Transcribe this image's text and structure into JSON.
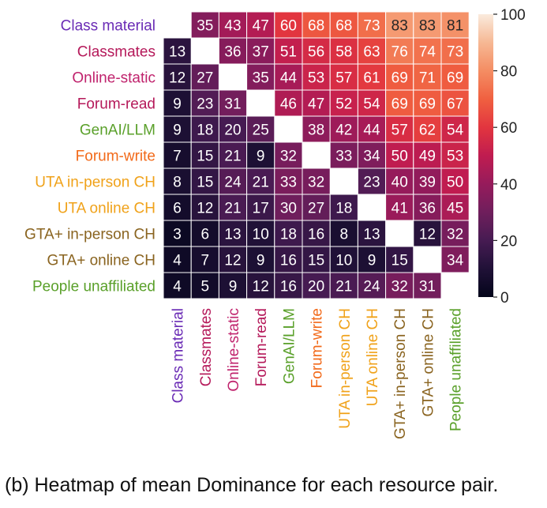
{
  "caption": "(b) Heatmap of mean Dominance for each resource pair.",
  "chart_data": {
    "type": "heatmap",
    "title": "",
    "xlabel": "",
    "ylabel": "",
    "rows": [
      "Class material",
      "Classmates",
      "Online-static",
      "Forum-read",
      "GenAI/LLM",
      "Forum-write",
      "UTA in-person CH",
      "UTA online CH",
      "GTA+ in-person CH",
      "GTA+ online CH",
      "People unaffiliated"
    ],
    "columns": [
      "Class material",
      "Classmates",
      "Online-static",
      "Forum-read",
      "GenAI/LLM",
      "Forum-write",
      "UTA in-person CH",
      "UTA online CH",
      "GTA+ in-person CH",
      "GTA+ online CH",
      "People unaffiliated"
    ],
    "label_colors": [
      "#6a2bb5",
      "#b5195a",
      "#c0236d",
      "#b5195a",
      "#5aa02a",
      "#f26a1a",
      "#f0a21a",
      "#f0a21a",
      "#8a6420",
      "#8a6420",
      "#5aa02a"
    ],
    "values": [
      [
        null,
        35,
        43,
        47,
        60,
        68,
        68,
        73,
        83,
        83,
        81
      ],
      [
        13,
        null,
        36,
        37,
        51,
        56,
        58,
        63,
        76,
        74,
        73
      ],
      [
        12,
        27,
        null,
        35,
        44,
        53,
        57,
        61,
        69,
        71,
        69
      ],
      [
        9,
        23,
        31,
        null,
        46,
        47,
        52,
        54,
        69,
        69,
        67
      ],
      [
        9,
        18,
        20,
        25,
        null,
        38,
        42,
        44,
        57,
        62,
        54
      ],
      [
        7,
        15,
        21,
        9,
        32,
        null,
        33,
        34,
        50,
        49,
        53
      ],
      [
        8,
        15,
        24,
        21,
        33,
        32,
        null,
        23,
        40,
        39,
        50
      ],
      [
        6,
        12,
        21,
        17,
        30,
        27,
        18,
        null,
        41,
        36,
        45
      ],
      [
        3,
        6,
        13,
        10,
        18,
        16,
        8,
        13,
        null,
        12,
        32
      ],
      [
        4,
        7,
        12,
        9,
        16,
        15,
        10,
        9,
        15,
        null,
        34
      ],
      [
        4,
        5,
        9,
        12,
        16,
        20,
        21,
        24,
        32,
        31,
        null
      ]
    ],
    "colorbar": {
      "min": 0,
      "max": 100,
      "ticks": [
        0,
        20,
        40,
        60,
        80,
        100
      ],
      "colormap": "rocket"
    }
  }
}
